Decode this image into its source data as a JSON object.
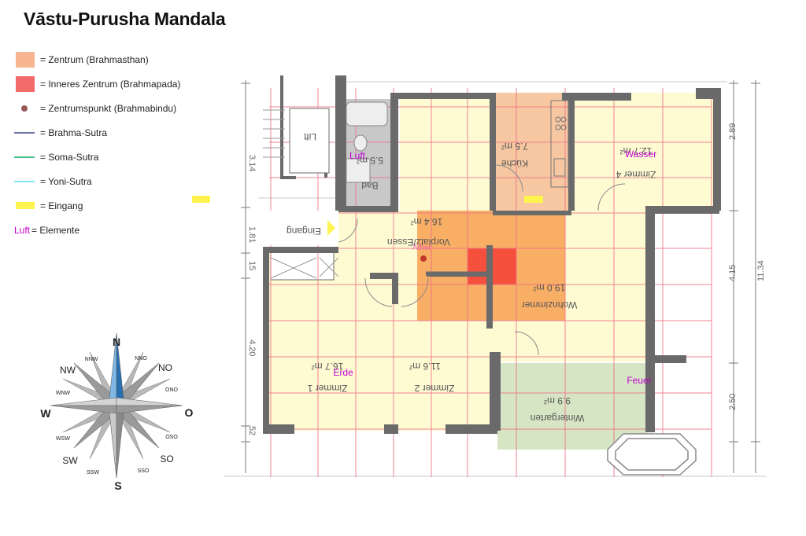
{
  "title": "Vāstu-Purusha Mandala",
  "legend": [
    {
      "symbol": "zentrum",
      "text": "= Zentrum (Brahmasthan)",
      "color": "#f7b592"
    },
    {
      "symbol": "inner",
      "text": "= Inneres Zentrum (Brahmapada)",
      "color": "#f36a6a"
    },
    {
      "symbol": "dot",
      "text": "= Zentrumspunkt (Brahmabindu)",
      "color": "#9a5a5a"
    },
    {
      "symbol": "line",
      "text": "= Brahma-Sutra",
      "color": "#6a6fa8"
    },
    {
      "symbol": "line",
      "text": "= Soma-Sutra",
      "color": "#4cc08a"
    },
    {
      "symbol": "line",
      "text": "= Yoni-Sutra",
      "color": "#7fe5f0"
    },
    {
      "symbol": "yellow",
      "text": "= Eingang",
      "color": "#fff44f"
    },
    {
      "symbol": "luft",
      "prefix": "Luft",
      "text": " = Elemente",
      "color": "#c000d0"
    }
  ],
  "colors": {
    "room_fill": "#fefbd3",
    "zentrum": "#f7a75b",
    "inner": "#f44b3c",
    "grid_line": "#ef6f86",
    "wall": "#6a6a6a",
    "bath": "#c8c8c8",
    "kitchen": "#f6c7a1",
    "wintergarten": "#d6e6c4",
    "element_text": "#c000d0",
    "entrance": "#fff44f",
    "dimension": "#777777"
  },
  "rooms": [
    {
      "id": "bad",
      "name": "Bad",
      "area": "5.5 m²"
    },
    {
      "id": "kueche",
      "name": "Küche",
      "area": "7.5 m²"
    },
    {
      "id": "zimmer4",
      "name": "Zimmer 4",
      "area": "12.7 m²"
    },
    {
      "id": "vorplatz",
      "name": "Vorplatz/Essen",
      "area": "16.4 m²"
    },
    {
      "id": "wohnzimmer",
      "name": "Wohnzimmer",
      "area": "19.0 m²"
    },
    {
      "id": "zimmer1",
      "name": "Zimmer 1",
      "area": "16.7 m²"
    },
    {
      "id": "zimmer2",
      "name": "Zimmer 2",
      "area": "11.6 m²"
    },
    {
      "id": "wintergarten",
      "name": "Wintergarten",
      "area": "9.9 m²"
    },
    {
      "id": "lift",
      "name": "Lift",
      "area": ""
    },
    {
      "id": "eingang",
      "name": "Eingang",
      "area": ""
    }
  ],
  "elements": [
    {
      "id": "luft",
      "label": "Luft"
    },
    {
      "id": "wasser",
      "label": "Wasser"
    },
    {
      "id": "aether",
      "label": "Äther"
    },
    {
      "id": "erde",
      "label": "Erde"
    },
    {
      "id": "feuer",
      "label": "Feuer"
    }
  ],
  "dimensions": {
    "left": [
      "3.14",
      "1.81",
      "15",
      "4.20",
      "52"
    ],
    "right": [
      "2.89",
      "4.15",
      "2.50"
    ],
    "total": "11.34"
  },
  "compass": {
    "N": "N",
    "S": "S",
    "W": "W",
    "O": "O",
    "NW": "NW",
    "NO": "NO",
    "SW": "SW",
    "SO": "SO",
    "NNW": "NNW",
    "NNO": "NNO",
    "WNW": "WNW",
    "ONO": "ONO",
    "WSW": "WSW",
    "OSO": "OSO",
    "SSW": "SSW",
    "SSO": "SSO"
  }
}
